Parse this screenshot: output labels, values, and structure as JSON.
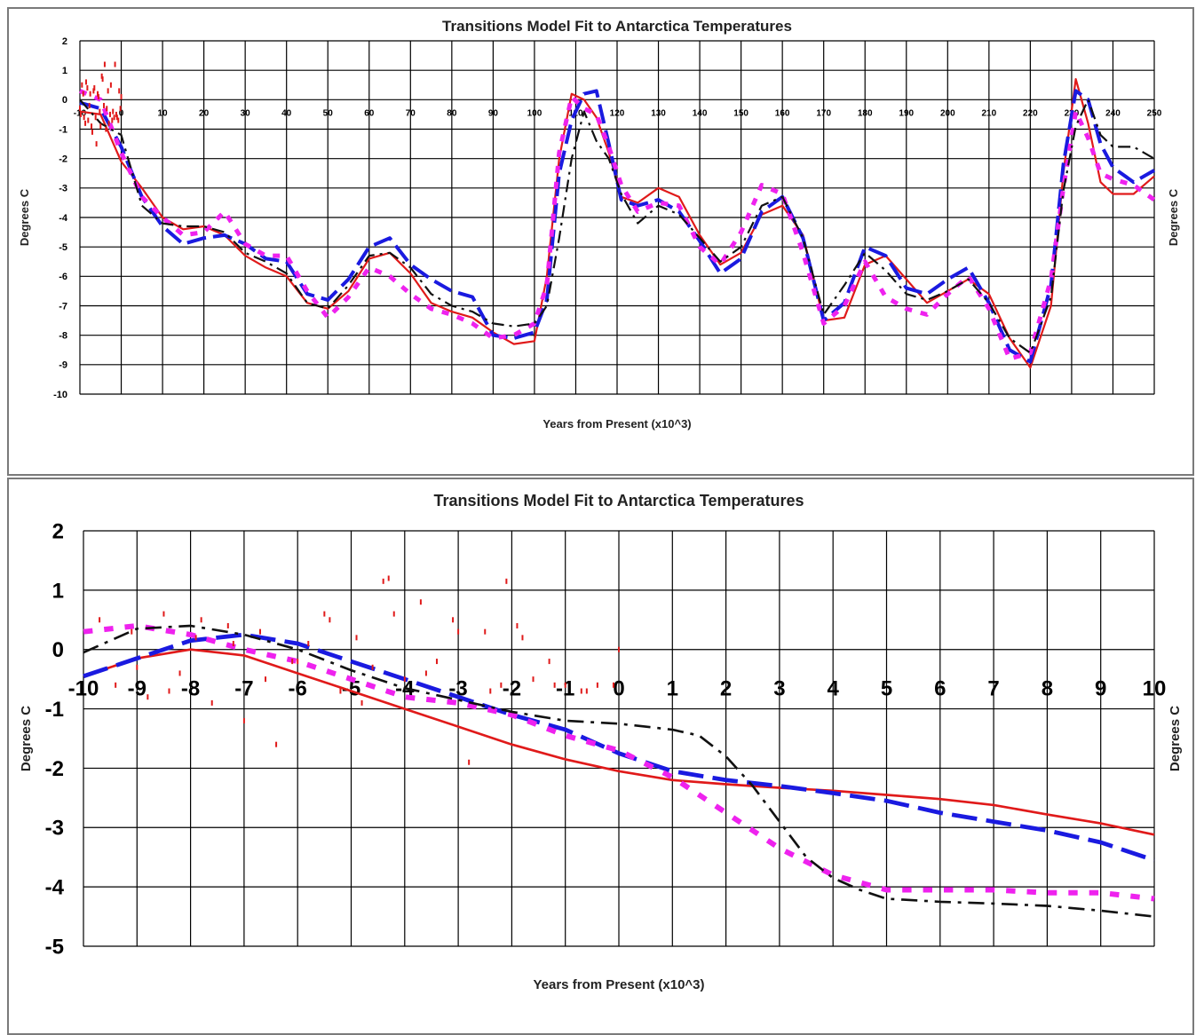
{
  "chart_data": [
    {
      "type": "line",
      "title": "Transitions Model Fit to Antarctica Temperatures",
      "xlabel": "Years from Present (x10^3)",
      "ylabel": "Degrees C",
      "ylabel_right": "Degrees C",
      "xlim": [
        -10,
        250
      ],
      "ylim": [
        -10,
        2
      ],
      "x_tick_labels": [
        -10,
        0,
        10,
        20,
        30,
        40,
        50,
        60,
        70,
        80,
        90,
        100,
        110,
        120,
        130,
        140,
        150,
        160,
        170,
        180,
        190,
        200,
        210,
        220,
        230,
        240,
        250
      ],
      "y_tick_labels": [
        2,
        1,
        0,
        -1,
        -2,
        -3,
        -4,
        -5,
        -6,
        -7,
        -8,
        -9,
        -10
      ],
      "grid": true,
      "series": [
        {
          "color": "#e01a1a",
          "style": "solid",
          "x": [
            -10,
            -5,
            0,
            5,
            10,
            15,
            20,
            25,
            30,
            35,
            40,
            45,
            50,
            55,
            60,
            65,
            70,
            75,
            80,
            85,
            90,
            95,
            100,
            103,
            106,
            109,
            112,
            115,
            118,
            121,
            125,
            130,
            135,
            140,
            145,
            150,
            155,
            160,
            165,
            170,
            175,
            180,
            185,
            190,
            195,
            200,
            205,
            210,
            215,
            220,
            225,
            228,
            231,
            234,
            237,
            240,
            245,
            250
          ],
          "y": [
            -0.4,
            -0.5,
            -2.1,
            -3.0,
            -4.0,
            -4.4,
            -4.3,
            -4.6,
            -5.3,
            -5.7,
            -6.0,
            -6.9,
            -7.1,
            -6.5,
            -5.4,
            -5.2,
            -5.9,
            -6.9,
            -7.2,
            -7.4,
            -7.9,
            -8.3,
            -8.2,
            -6.0,
            -2.0,
            0.2,
            0.0,
            -0.6,
            -1.8,
            -3.3,
            -3.5,
            -3.0,
            -3.3,
            -4.6,
            -5.6,
            -5.2,
            -3.9,
            -3.6,
            -4.6,
            -7.5,
            -7.4,
            -5.6,
            -5.3,
            -6.1,
            -6.9,
            -6.5,
            -6.1,
            -6.6,
            -8.1,
            -9.1,
            -7.0,
            -2.5,
            0.7,
            -0.8,
            -2.8,
            -3.2,
            -3.2,
            -2.6
          ]
        },
        {
          "color": "#1a1ae0",
          "style": "dashed",
          "x": [
            -10,
            -5,
            0,
            5,
            10,
            15,
            20,
            25,
            30,
            35,
            40,
            45,
            50,
            55,
            60,
            65,
            70,
            75,
            80,
            85,
            90,
            95,
            100,
            103,
            106,
            109,
            112,
            115,
            118,
            121,
            125,
            130,
            135,
            140,
            145,
            150,
            155,
            160,
            165,
            170,
            175,
            180,
            185,
            190,
            195,
            200,
            205,
            210,
            215,
            220,
            225,
            228,
            231,
            234,
            237,
            240,
            245,
            250
          ],
          "y": [
            -0.1,
            -0.3,
            -1.6,
            -3.3,
            -4.3,
            -4.9,
            -4.7,
            -4.6,
            -4.9,
            -5.4,
            -5.5,
            -6.6,
            -6.8,
            -6.1,
            -5.0,
            -4.7,
            -5.6,
            -6.1,
            -6.5,
            -6.7,
            -8.0,
            -8.1,
            -7.9,
            -6.8,
            -2.5,
            -0.7,
            0.2,
            0.3,
            -1.5,
            -3.4,
            -3.6,
            -3.4,
            -3.8,
            -4.8,
            -5.9,
            -5.4,
            -3.8,
            -3.3,
            -4.7,
            -7.5,
            -6.9,
            -5.0,
            -5.3,
            -6.4,
            -6.6,
            -6.1,
            -5.7,
            -6.9,
            -8.5,
            -8.9,
            -6.3,
            -2.2,
            0.3,
            0.0,
            -1.5,
            -2.3,
            -2.8,
            -2.4
          ]
        },
        {
          "color": "#ee22ee",
          "style": "dotted",
          "x": [
            -10,
            -5,
            0,
            5,
            10,
            15,
            20,
            25,
            30,
            35,
            40,
            45,
            50,
            55,
            60,
            65,
            70,
            75,
            80,
            85,
            90,
            95,
            100,
            103,
            106,
            109,
            112,
            115,
            118,
            121,
            125,
            130,
            135,
            140,
            145,
            150,
            155,
            160,
            165,
            170,
            175,
            180,
            185,
            190,
            195,
            200,
            205,
            210,
            215,
            220,
            225,
            228,
            231,
            234,
            237,
            240,
            245,
            250
          ],
          "y": [
            0.3,
            0.0,
            -1.8,
            -3.3,
            -4.0,
            -4.6,
            -4.5,
            -3.8,
            -4.9,
            -5.3,
            -5.3,
            -6.5,
            -7.4,
            -6.7,
            -5.7,
            -6.0,
            -6.6,
            -7.1,
            -7.3,
            -7.6,
            -8.1,
            -8.0,
            -7.6,
            -6.3,
            -1.8,
            0.1,
            -0.3,
            -0.5,
            -1.6,
            -2.9,
            -3.8,
            -3.5,
            -3.6,
            -5.0,
            -5.6,
            -4.5,
            -2.9,
            -3.2,
            -5.2,
            -7.6,
            -7.0,
            -5.5,
            -6.7,
            -7.1,
            -7.3,
            -6.6,
            -6.0,
            -7.1,
            -8.8,
            -8.6,
            -6.1,
            -3.0,
            -0.4,
            -1.3,
            -2.5,
            -2.7,
            -2.9,
            -3.4
          ]
        },
        {
          "color": "#111111",
          "style": "dashdot",
          "x": [
            -10,
            -5,
            0,
            5,
            10,
            15,
            20,
            25,
            30,
            35,
            40,
            45,
            50,
            55,
            60,
            65,
            70,
            75,
            80,
            85,
            90,
            95,
            100,
            103,
            106,
            109,
            112,
            115,
            118,
            121,
            125,
            130,
            135,
            140,
            145,
            150,
            155,
            160,
            165,
            170,
            175,
            180,
            185,
            190,
            195,
            200,
            205,
            210,
            215,
            220,
            225,
            228,
            231,
            234,
            237,
            240,
            245,
            250
          ],
          "y": [
            0.0,
            -0.8,
            -1.2,
            -3.6,
            -4.2,
            -4.3,
            -4.3,
            -4.5,
            -5.2,
            -5.5,
            -5.9,
            -6.9,
            -7.1,
            -6.3,
            -5.3,
            -5.2,
            -5.7,
            -6.6,
            -7.0,
            -7.2,
            -7.6,
            -7.7,
            -7.6,
            -7.0,
            -4.7,
            -2.0,
            -0.4,
            -1.4,
            -2.0,
            -3.2,
            -4.2,
            -3.6,
            -3.9,
            -4.7,
            -5.5,
            -5.0,
            -3.6,
            -3.3,
            -4.7,
            -7.3,
            -6.3,
            -5.2,
            -5.8,
            -6.6,
            -6.8,
            -6.5,
            -6.1,
            -6.9,
            -8.1,
            -8.6,
            -6.7,
            -3.1,
            -0.9,
            0.0,
            -1.2,
            -1.6,
            -1.6,
            -2.0
          ]
        },
        {
          "color": "#e01a1a",
          "style": "points",
          "x": [
            -10,
            -9.5,
            -9,
            -8.5,
            -8,
            -7.5,
            -7,
            -6.5,
            -6,
            -5.5,
            -5,
            -4.5,
            -4,
            -3.5,
            -3,
            -2.5,
            -2,
            -1.5,
            -1,
            -0.5,
            0,
            -9.8,
            -9.2,
            -8.7,
            -8.2,
            -7.7,
            -7.2,
            -6.7,
            -6.2,
            -5.7,
            -5.2,
            -4.7,
            -4.2,
            -3.7,
            -3.2,
            -2.7,
            -2.2,
            -1.7,
            -1.2,
            -0.7,
            -0.2
          ],
          "y": [
            -0.3,
            0.5,
            -0.6,
            0.6,
            -0.7,
            0.2,
            -1.1,
            0.4,
            -1.5,
            0.1,
            -0.9,
            0.7,
            1.2,
            -0.3,
            -0.8,
            0.5,
            -0.4,
            1.2,
            -0.6,
            0.3,
            0.1,
            -0.5,
            0.2,
            -0.8,
            0.4,
            -0.2,
            -0.9,
            0.3,
            -0.6,
            0.2,
            -0.4,
            0.8,
            -0.2,
            -1.0,
            0.3,
            -0.5,
            -0.7,
            -0.6,
            -0.5,
            -0.7,
            -0.3
          ]
        }
      ]
    },
    {
      "type": "line",
      "title": "Transitions Model Fit to Antarctica Temperatures",
      "xlabel": "Years from Present (x10^3)",
      "ylabel": "Degrees C",
      "ylabel_right": "Degrees C",
      "xlim": [
        -10,
        10
      ],
      "ylim": [
        -5,
        2
      ],
      "x_tick_labels": [
        -10,
        -9,
        -8,
        -7,
        -6,
        -5,
        -4,
        -3,
        -2,
        -1,
        0,
        1,
        2,
        3,
        4,
        5,
        6,
        7,
        8,
        9,
        10
      ],
      "y_tick_labels": [
        2,
        1,
        0,
        -1,
        -2,
        -3,
        -4,
        -5
      ],
      "grid": true,
      "series": [
        {
          "color": "#e01a1a",
          "style": "solid",
          "x": [
            -10,
            -9,
            -8,
            -7,
            -6,
            -5,
            -4,
            -3,
            -2,
            -1,
            0,
            1,
            2,
            3,
            4,
            5,
            6,
            7,
            8,
            9,
            10
          ],
          "y": [
            -0.45,
            -0.15,
            0.0,
            -0.1,
            -0.4,
            -0.7,
            -1.0,
            -1.3,
            -1.6,
            -1.85,
            -2.05,
            -2.2,
            -2.27,
            -2.33,
            -2.38,
            -2.45,
            -2.52,
            -2.62,
            -2.78,
            -2.93,
            -3.12
          ]
        },
        {
          "color": "#1a1ae0",
          "style": "dashed",
          "x": [
            -10,
            -9,
            -8,
            -7,
            -6,
            -5,
            -4,
            -3,
            -2,
            -1,
            0,
            1,
            2,
            3,
            4,
            5,
            6,
            7,
            8,
            9,
            10
          ],
          "y": [
            -0.45,
            -0.15,
            0.15,
            0.25,
            0.1,
            -0.2,
            -0.5,
            -0.8,
            -1.1,
            -1.35,
            -1.75,
            -2.05,
            -2.2,
            -2.3,
            -2.42,
            -2.55,
            -2.75,
            -2.9,
            -3.05,
            -3.25,
            -3.55
          ]
        },
        {
          "color": "#ee22ee",
          "style": "dotted",
          "x": [
            -10,
            -9,
            -8,
            -7,
            -6,
            -5,
            -4,
            -3,
            -2,
            -1,
            0,
            1,
            2,
            3,
            4,
            5,
            6,
            7,
            8,
            9,
            10
          ],
          "y": [
            0.3,
            0.4,
            0.25,
            0.0,
            -0.2,
            -0.5,
            -0.8,
            -0.9,
            -1.1,
            -1.45,
            -1.7,
            -2.15,
            -2.75,
            -3.35,
            -3.8,
            -4.05,
            -4.05,
            -4.05,
            -4.1,
            -4.1,
            -4.2
          ]
        },
        {
          "color": "#111111",
          "style": "dashdot",
          "x": [
            -10,
            -9,
            -8,
            -7,
            -6,
            -5,
            -4,
            -3,
            -2,
            -1,
            0,
            1,
            1.5,
            2,
            2.5,
            3,
            3.5,
            4,
            4.5,
            5,
            6,
            7,
            8,
            9,
            10
          ],
          "y": [
            -0.05,
            0.35,
            0.4,
            0.25,
            0.0,
            -0.35,
            -0.65,
            -0.85,
            -1.05,
            -1.2,
            -1.25,
            -1.35,
            -1.45,
            -1.8,
            -2.3,
            -2.9,
            -3.5,
            -3.85,
            -4.05,
            -4.2,
            -4.25,
            -4.28,
            -4.32,
            -4.4,
            -4.5
          ]
        },
        {
          "color": "#e01a1a",
          "style": "points",
          "x": [
            -9.7,
            -9.4,
            -9.1,
            -8.8,
            -8.5,
            -8.2,
            -7.9,
            -7.6,
            -7.3,
            -7.0,
            -6.7,
            -6.4,
            -6.1,
            -5.8,
            -5.5,
            -5.2,
            -4.9,
            -4.6,
            -4.3,
            -4.0,
            -3.7,
            -3.4,
            -3.1,
            -2.8,
            -2.5,
            -2.2,
            -1.9,
            -1.6,
            -1.3,
            -1.0,
            -0.7,
            -0.4,
            -0.1,
            0.0,
            -9.0,
            -8.4,
            -7.8,
            -7.2,
            -6.6,
            -6.0,
            -5.4,
            -4.8,
            -4.2,
            -3.6,
            -3.0,
            -2.4,
            -1.8,
            -1.2,
            -0.6,
            -4.4,
            -2.1
          ],
          "y": [
            0.5,
            -0.6,
            0.3,
            -0.8,
            0.6,
            -0.4,
            0.2,
            -0.9,
            0.4,
            -1.2,
            0.3,
            -1.6,
            -0.2,
            0.1,
            0.6,
            -0.7,
            0.2,
            -0.3,
            1.2,
            -0.5,
            0.8,
            -0.2,
            0.5,
            -1.9,
            0.3,
            -0.6,
            0.4,
            -0.5,
            -0.2,
            -0.6,
            -0.7,
            -0.6,
            -0.6,
            0.0,
            -0.3,
            -0.7,
            0.5,
            0.1,
            -0.5,
            -0.2,
            0.5,
            -0.9,
            0.6,
            -0.4,
            0.3,
            -0.7,
            0.2,
            -0.6,
            -0.7,
            1.15,
            1.15
          ]
        }
      ]
    }
  ]
}
